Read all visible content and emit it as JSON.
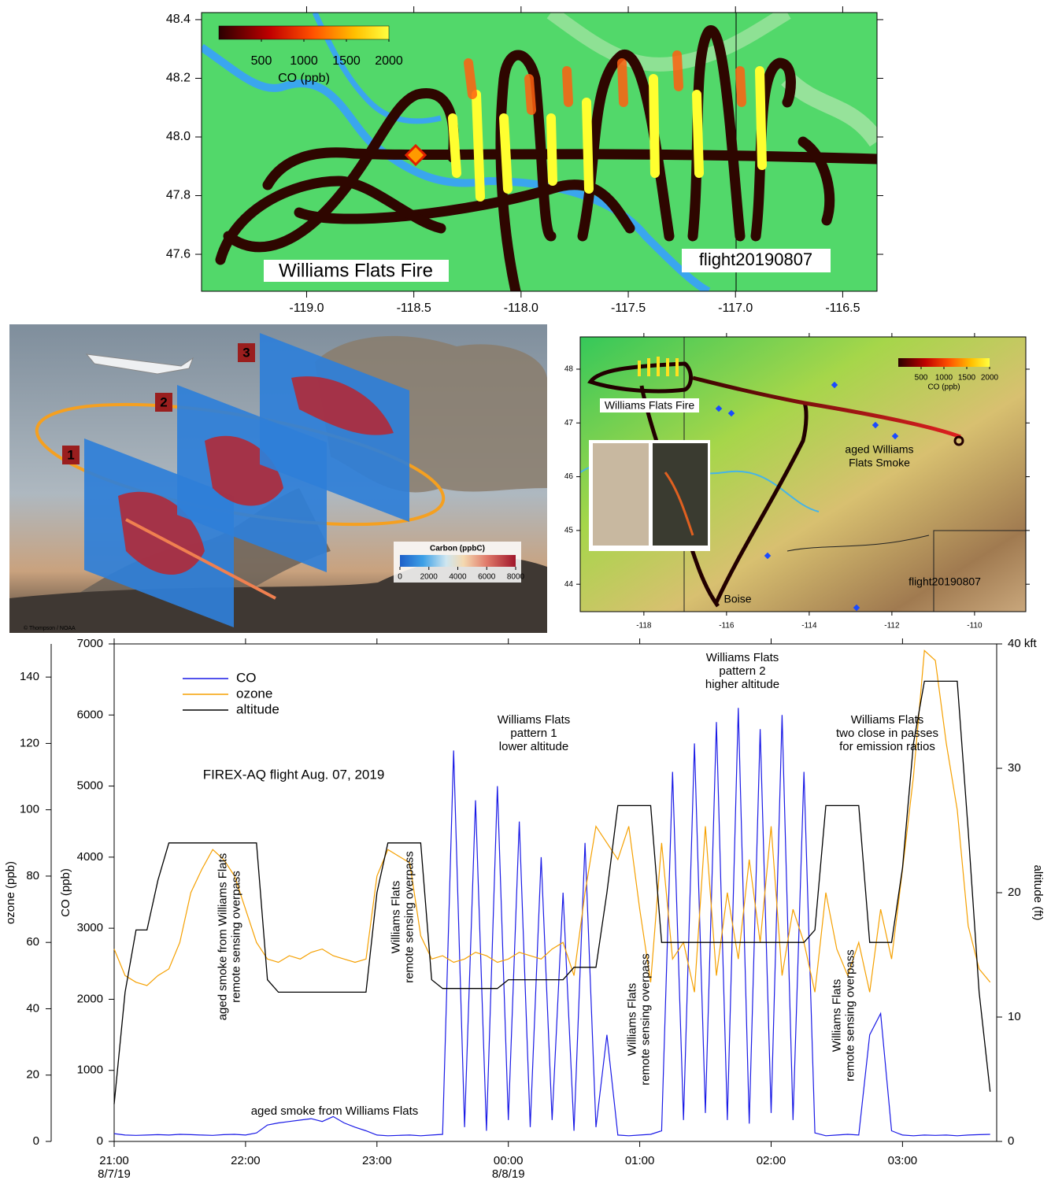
{
  "chart_data": [
    {
      "type": "map",
      "xlim": [
        -119.49,
        -116.34
      ],
      "ylim": [
        47.474,
        48.424
      ],
      "xticks": [
        {
          "value": -119,
          "label": "-119.0"
        },
        -118.5,
        {
          "value": -118,
          "label": "-118.0"
        },
        -117.5,
        {
          "value": -117,
          "label": "-117.0"
        },
        -116.5
      ],
      "yticks": [
        47.6,
        47.8,
        {
          "value": 48,
          "label": "48.0"
        },
        48.2,
        48.4
      ],
      "colorbar": {
        "label": "CO (ppb)",
        "lim": [
          0,
          2000
        ],
        "ticks": [
          500,
          1000,
          1500,
          2000
        ]
      },
      "annotations": [
        "Williams Flats Fire",
        "flight20190807"
      ]
    },
    {
      "type": "illustration",
      "labels": [
        "1",
        "2",
        "3"
      ],
      "colorbar": {
        "label": "Carbon (ppbC)",
        "lim": [
          0,
          8000
        ],
        "ticks": [
          0,
          2000,
          4000,
          6000,
          8000
        ]
      },
      "credit": "© Thompson / NOAA"
    },
    {
      "type": "map",
      "xlim": [
        -119.54,
        -108.76
      ],
      "ylim": [
        43.49,
        48.6
      ],
      "xticks": [
        -118,
        -116,
        -114,
        -112,
        -110
      ],
      "yticks": [
        44,
        45,
        46,
        47,
        48
      ],
      "colorbar": {
        "label": "CO (ppb)",
        "lim": [
          0,
          2000
        ],
        "ticks": [
          500,
          1000,
          1500,
          2000
        ]
      },
      "annotations": [
        "Williams Flats Fire",
        "aged Williams",
        "Flats Smoke",
        "Boise",
        "flight20190807"
      ]
    },
    {
      "type": "line",
      "title": "FIREX-AQ flight Aug. 07, 2019",
      "x": [
        "21:00",
        "21:05",
        "21:10",
        "21:15",
        "21:20",
        "21:25",
        "21:30",
        "21:35",
        "21:40",
        "21:45",
        "21:50",
        "21:55",
        "22:00",
        "22:05",
        "22:10",
        "22:15",
        "22:20",
        "22:25",
        "22:30",
        "22:35",
        "22:40",
        "22:45",
        "22:50",
        "22:55",
        "23:00",
        "23:05",
        "23:10",
        "23:15",
        "23:20",
        "23:25",
        "23:30",
        "23:35",
        "23:40",
        "23:45",
        "23:50",
        "23:55",
        "00:00",
        "00:05",
        "00:10",
        "00:15",
        "00:20",
        "00:25",
        "00:30",
        "00:35",
        "00:40",
        "00:45",
        "00:50",
        "00:55",
        "01:00",
        "01:05",
        "01:10",
        "01:15",
        "01:20",
        "01:25",
        "01:30",
        "01:35",
        "01:40",
        "01:45",
        "01:50",
        "01:55",
        "02:00",
        "02:05",
        "02:10",
        "02:15",
        "02:20",
        "02:25",
        "02:30",
        "02:35",
        "02:40",
        "02:45",
        "02:50",
        "02:55",
        "03:00",
        "03:05",
        "03:10",
        "03:15",
        "03:20",
        "03:25",
        "03:30",
        "03:35",
        "03:40"
      ],
      "xlim": [
        "21:00",
        "03:43"
      ],
      "xticks": [
        "21:00",
        "22:00",
        "23:00",
        "00:00",
        "01:00",
        "02:00",
        "03:00"
      ],
      "date_labels": [
        {
          "value": "21:00",
          "label": "8/7/19"
        },
        {
          "value": "00:00",
          "label": "8/8/19"
        }
      ],
      "ylabel": "CO (ppb)",
      "ylim": [
        0,
        7000
      ],
      "yticks": [
        0,
        1000,
        2000,
        3000,
        4000,
        5000,
        6000,
        7000
      ],
      "y2label": "altitude (ft)",
      "y2lim": [
        0,
        40
      ],
      "y2ticks": [
        0,
        10,
        20,
        30,
        {
          "value": 40,
          "label": "40 kft"
        }
      ],
      "y3label": "ozone (ppb)",
      "y3lim": [
        0,
        150
      ],
      "y3ticks": [
        0,
        20,
        40,
        60,
        80,
        100,
        120,
        140
      ],
      "series": [
        {
          "name": "CO",
          "color": "#1a1ae6",
          "values": [
            110,
            90,
            85,
            90,
            95,
            90,
            100,
            95,
            90,
            85,
            95,
            100,
            90,
            120,
            230,
            260,
            280,
            300,
            320,
            280,
            350,
            260,
            200,
            150,
            90,
            80,
            85,
            90,
            80,
            90,
            100,
            5500,
            200,
            4800,
            150,
            5000,
            300,
            4500,
            200,
            4000,
            300,
            3500,
            150,
            4200,
            200,
            1500,
            90,
            80,
            90,
            100,
            150,
            5200,
            300,
            5600,
            400,
            5900,
            300,
            6100,
            250,
            5800,
            400,
            6000,
            300,
            5200,
            120,
            80,
            90,
            100,
            90,
            1500,
            1800,
            150,
            90,
            80,
            90,
            85,
            90,
            80,
            90,
            95,
            100
          ]
        },
        {
          "name": "ozone",
          "color": "#f5a000",
          "axis": "y3",
          "values": [
            58,
            50,
            48,
            47,
            50,
            52,
            60,
            75,
            82,
            88,
            85,
            80,
            70,
            60,
            55,
            54,
            56,
            55,
            57,
            58,
            56,
            55,
            54,
            55,
            80,
            88,
            86,
            84,
            62,
            55,
            56,
            54,
            55,
            57,
            56,
            54,
            55,
            57,
            56,
            55,
            58,
            60,
            50,
            75,
            95,
            90,
            85,
            95,
            70,
            48,
            90,
            55,
            60,
            45,
            95,
            50,
            75,
            55,
            85,
            60,
            95,
            50,
            70,
            60,
            45,
            75,
            58,
            50,
            60,
            45,
            70,
            55,
            82,
            110,
            148,
            145,
            120,
            100,
            65,
            52,
            48
          ]
        },
        {
          "name": "altitude",
          "color": "#000000",
          "axis": "y2",
          "values": [
            3,
            12,
            17,
            17,
            21,
            24,
            24,
            24,
            24,
            24,
            24,
            24,
            24,
            24,
            13,
            12,
            12,
            12,
            12,
            12,
            12,
            12,
            12,
            12,
            20,
            24,
            24,
            24,
            24,
            13,
            12.3,
            12.3,
            12.3,
            12.3,
            12.3,
            12.3,
            13,
            13,
            13,
            13,
            13,
            13,
            14,
            14,
            14,
            20,
            27,
            27,
            27,
            27,
            16,
            16,
            16,
            16,
            16,
            16,
            16,
            16,
            16,
            16,
            16,
            16,
            16,
            16,
            17,
            27,
            27,
            27,
            27,
            16,
            16,
            16,
            22,
            32,
            37,
            37,
            37,
            37,
            25,
            12,
            4
          ]
        }
      ],
      "annotations": [
        {
          "lines": [
            "aged smoke from Williams Flats",
            "remote sensing overpass"
          ]
        },
        {
          "lines": [
            "Williams Flats",
            "remote sensing overpass"
          ]
        },
        {
          "lines": [
            "Williams Flats",
            "remote sensing overpass"
          ]
        },
        {
          "lines": [
            "Williams Flats",
            "remote sensing overpass"
          ]
        },
        {
          "lines": [
            "aged smoke from Williams Flats"
          ]
        },
        {
          "lines": [
            "Williams Flats",
            "pattern 1",
            "lower altitude"
          ]
        },
        {
          "lines": [
            "Williams Flats",
            "pattern 2",
            "higher altitude"
          ]
        },
        {
          "lines": [
            "Williams Flats",
            "two close in passes",
            "for emission ratios"
          ]
        }
      ]
    }
  ]
}
